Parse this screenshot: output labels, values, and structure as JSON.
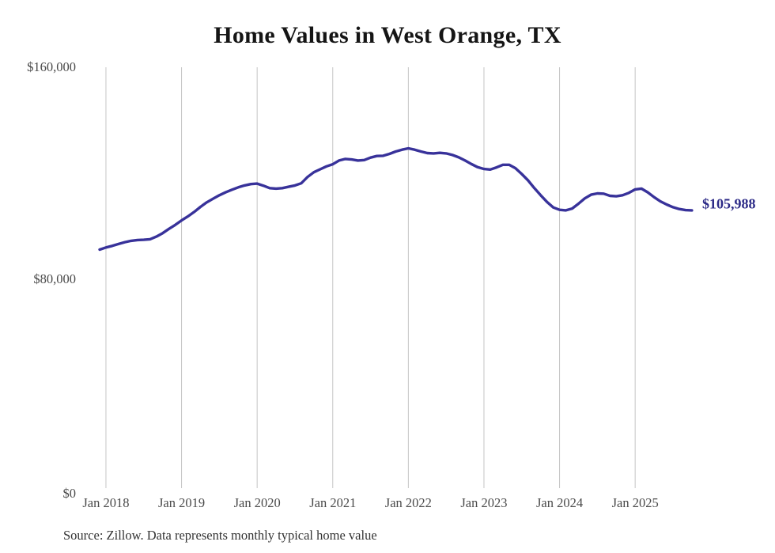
{
  "source_note": "Source: Zillow. Data represents monthly typical home value",
  "colors": {
    "line": "#38329a",
    "end_label": "#2c2a87",
    "grid": "#c4c4c4",
    "tick_text": "#4a4a4a",
    "title_text": "#151515",
    "background": "#ffffff"
  },
  "chart_data": {
    "type": "line",
    "title": "Home Values in West Orange, TX",
    "ylabel": "",
    "xlabel": "",
    "unit": "USD",
    "frequency": "monthly",
    "x_start_month": "Dec 2017",
    "x_end_month": "Oct 2025",
    "ylim": [
      0,
      160000
    ],
    "grid": "vertical-only",
    "legend": "none",
    "final_value_label": "$105,988",
    "final_value": 105988,
    "y_ticks": [
      {
        "value": 0,
        "label": "$0"
      },
      {
        "value": 80000,
        "label": "$80,000"
      },
      {
        "value": 160000,
        "label": "$160,000"
      }
    ],
    "x_ticks": [
      {
        "month_index": 1,
        "label": "Jan 2018"
      },
      {
        "month_index": 13,
        "label": "Jan 2019"
      },
      {
        "month_index": 25,
        "label": "Jan 2020"
      },
      {
        "month_index": 37,
        "label": "Jan 2021"
      },
      {
        "month_index": 49,
        "label": "Jan 2022"
      },
      {
        "month_index": 61,
        "label": "Jan 2023"
      },
      {
        "month_index": 73,
        "label": "Jan 2024"
      },
      {
        "month_index": 85,
        "label": "Jan 2025"
      }
    ],
    "values": [
      91200,
      92000,
      92600,
      93300,
      94000,
      94500,
      94800,
      94900,
      95100,
      96100,
      97400,
      99000,
      100500,
      102200,
      103700,
      105400,
      107300,
      109000,
      110400,
      111700,
      112800,
      113800,
      114700,
      115400,
      115900,
      116100,
      115300,
      114400,
      114200,
      114400,
      114900,
      115400,
      116200,
      118600,
      120400,
      121500,
      122600,
      123400,
      124800,
      125400,
      125200,
      124800,
      125000,
      125900,
      126500,
      126600,
      127300,
      128200,
      128900,
      129400,
      128900,
      128200,
      127600,
      127500,
      127700,
      127500,
      126900,
      126000,
      124800,
      123500,
      122300,
      121600,
      121400,
      122200,
      123200,
      123200,
      121900,
      119700,
      117300,
      114400,
      111700,
      109200,
      107100,
      106200,
      106000,
      106700,
      108500,
      110500,
      111900,
      112400,
      112300,
      111500,
      111300,
      111700,
      112600,
      113900,
      114200,
      112800,
      111000,
      109400,
      108200,
      107200,
      106500,
      106100,
      105988
    ]
  }
}
